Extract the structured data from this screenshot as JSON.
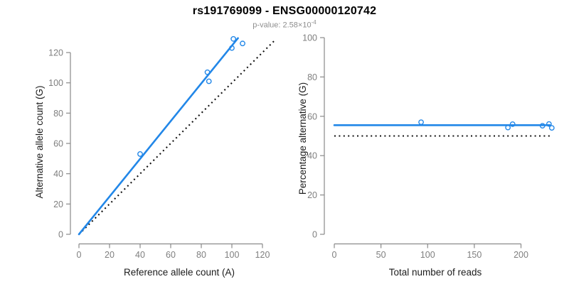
{
  "header": {
    "title": "rs191769099 - ENSG00000120742",
    "pvalue_prefix": "p-value: 2.58×10",
    "pvalue_exponent": "-4"
  },
  "colors": {
    "accent_blue": "#2287e8",
    "identity_black": "#111111",
    "axis_line_gray": "#8a8a8a",
    "tick_text_gray": "#7f7f7f",
    "axis_title_black": "#1c1c1c",
    "background": "#ffffff"
  },
  "chart_data": [
    {
      "type": "scatter",
      "name": "allele-counts-plot",
      "xlabel": "Reference allele count (A)",
      "ylabel": "Alternative allele count (G)",
      "xlim": [
        0,
        128
      ],
      "ylim": [
        0,
        130
      ],
      "xticks": [
        0,
        20,
        40,
        60,
        80,
        100,
        120
      ],
      "yticks": [
        0,
        20,
        40,
        60,
        80,
        100,
        120
      ],
      "grid": false,
      "legend": false,
      "points": [
        [
          40,
          53
        ],
        [
          85,
          101
        ],
        [
          84,
          107
        ],
        [
          100,
          123
        ],
        [
          101,
          129
        ],
        [
          107,
          126
        ]
      ],
      "lines": [
        {
          "name": "identity-line",
          "style": "dotted",
          "color": "black",
          "x1": 0,
          "y1": 0,
          "x2": 128,
          "y2": 128
        },
        {
          "name": "fit-line",
          "style": "solid",
          "color": "blue",
          "x1": 0,
          "y1": 0,
          "x2": 104,
          "y2": 129.5
        }
      ]
    },
    {
      "type": "scatter",
      "name": "percentage-alternative-plot",
      "xlabel": "Total number of reads",
      "ylabel": "Percentage alternative (G)",
      "xlim": [
        0,
        236
      ],
      "ylim": [
        0,
        100
      ],
      "xticks": [
        0,
        50,
        100,
        150,
        200
      ],
      "yticks": [
        0,
        20,
        40,
        60,
        80,
        100
      ],
      "grid": false,
      "legend": false,
      "points": [
        [
          93,
          57
        ],
        [
          186,
          54.3
        ],
        [
          191,
          56
        ],
        [
          223,
          55.2
        ],
        [
          230,
          56.1
        ],
        [
          233,
          54.1
        ]
      ],
      "lines": [
        {
          "name": "null-50pct-line",
          "style": "dotted",
          "color": "black",
          "x1": 0,
          "y1": 50,
          "x2": 232,
          "y2": 50
        },
        {
          "name": "fit-line",
          "style": "solid",
          "color": "blue",
          "x1": 0,
          "y1": 55.5,
          "x2": 231,
          "y2": 55.5
        }
      ]
    }
  ]
}
